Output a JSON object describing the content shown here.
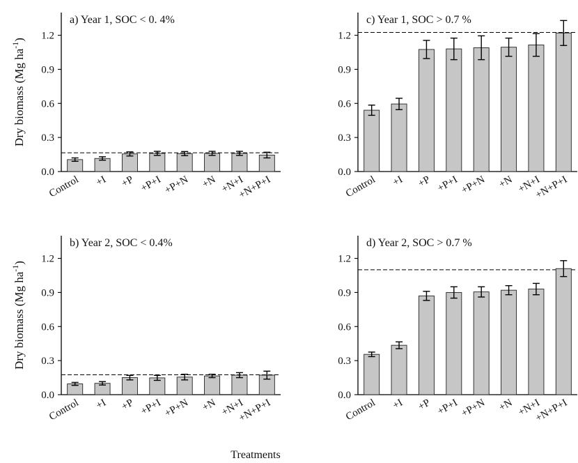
{
  "y_axis_title": "Dry biomass (Mg ha",
  "y_axis_title_exponent": "-1",
  "y_axis_title_close": ")",
  "x_axis_title": "Treatments",
  "chart_data": [
    {
      "type": "bar",
      "title": "a) Year 1, SOC < 0. 4%",
      "categories": [
        "Control",
        "+I",
        "+P",
        "+P+I",
        "+P+N",
        "+N",
        "+N+I",
        "+N+P+I"
      ],
      "values": [
        0.105,
        0.115,
        0.155,
        0.16,
        0.158,
        0.16,
        0.16,
        0.145
      ],
      "errors": [
        0.015,
        0.015,
        0.018,
        0.018,
        0.018,
        0.018,
        0.018,
        0.025
      ],
      "reference_line": 0.165,
      "ylim": [
        0,
        1.4
      ],
      "yticks": [
        "0.0",
        "0.3",
        "0.6",
        "0.9",
        "1.2"
      ],
      "grid": false
    },
    {
      "type": "bar",
      "title": "c) Year 1, SOC > 0.7 %",
      "categories": [
        "Control",
        "+I",
        "+P",
        "+P+I",
        "+P+N",
        "+N",
        "+N+I",
        "+N+P+I"
      ],
      "values": [
        0.54,
        0.595,
        1.075,
        1.08,
        1.09,
        1.095,
        1.115,
        1.22
      ],
      "errors": [
        0.045,
        0.05,
        0.08,
        0.095,
        0.105,
        0.08,
        0.1,
        0.11
      ],
      "reference_line": 1.225,
      "ylim": [
        0,
        1.4
      ],
      "yticks": [
        "0.0",
        "0.3",
        "0.6",
        "0.9",
        "1.2"
      ],
      "grid": false
    },
    {
      "type": "bar",
      "title": "b) Year 2, SOC < 0.4%",
      "categories": [
        "Control",
        "+I",
        "+P",
        "+P+I",
        "+P+N",
        "+N",
        "+N+I",
        "+N+P+I"
      ],
      "values": [
        0.095,
        0.1,
        0.15,
        0.148,
        0.155,
        0.165,
        0.172,
        0.172
      ],
      "errors": [
        0.013,
        0.015,
        0.02,
        0.022,
        0.025,
        0.015,
        0.022,
        0.035
      ],
      "reference_line": 0.175,
      "ylim": [
        0,
        1.4
      ],
      "yticks": [
        "0.0",
        "0.3",
        "0.6",
        "0.9",
        "1.2"
      ],
      "grid": false
    },
    {
      "type": "bar",
      "title": "d) Year 2, SOC > 0.7 %",
      "categories": [
        "Control",
        "+I",
        "+P",
        "+P+I",
        "+P+N",
        "+N",
        "+N+I",
        "+N+P+I"
      ],
      "values": [
        0.355,
        0.435,
        0.87,
        0.9,
        0.905,
        0.92,
        0.93,
        1.11
      ],
      "errors": [
        0.02,
        0.03,
        0.04,
        0.05,
        0.045,
        0.04,
        0.05,
        0.07
      ],
      "reference_line": 1.1,
      "ylim": [
        0,
        1.4
      ],
      "yticks": [
        "0.0",
        "0.3",
        "0.6",
        "0.9",
        "1.2"
      ],
      "grid": false
    }
  ]
}
